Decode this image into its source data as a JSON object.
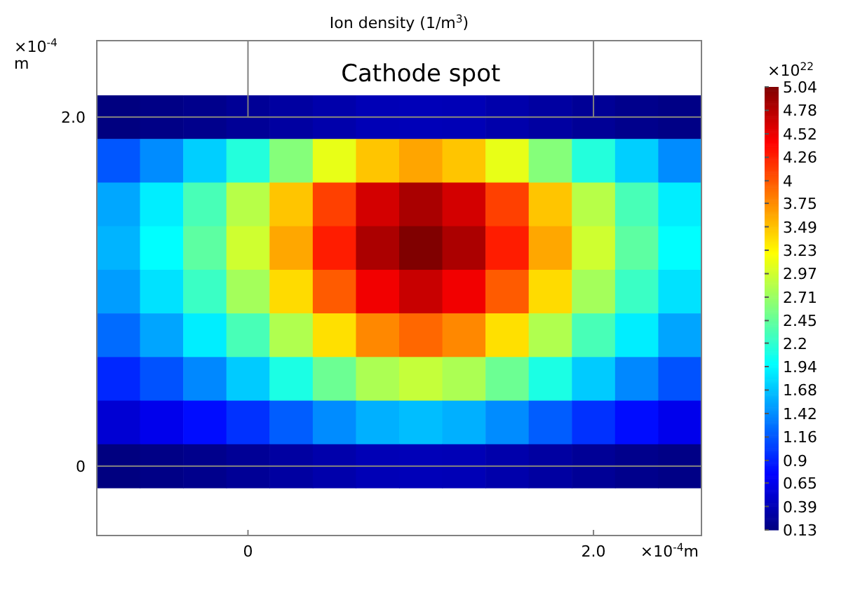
{
  "chart_data": {
    "type": "heatmap",
    "title": "Ion density (1/m$^{3}$)",
    "xlabel": "×10$^{-4}$m",
    "ylabel": "×10$^{-4}$ m",
    "clabel": "×10$^{22}$",
    "categories": [
      null,
      null,
      null,
      "0",
      null,
      null,
      null,
      null,
      null,
      null,
      null,
      "2.0",
      null,
      null
    ],
    "y_categories": [
      "2.0",
      null,
      null,
      null,
      null,
      null,
      null,
      null,
      "0"
    ],
    "cells": [
      [
        0.13,
        0.16,
        0.19,
        0.24,
        0.29,
        0.34,
        0.39,
        0.4,
        0.39,
        0.34,
        0.29,
        0.24,
        0.19,
        0.16
      ],
      [
        1.16,
        1.42,
        1.74,
        2.14,
        2.61,
        3.09,
        3.48,
        3.63,
        3.48,
        3.09,
        2.61,
        2.14,
        1.74,
        1.42
      ],
      [
        1.55,
        1.89,
        2.32,
        2.85,
        3.48,
        4.12,
        4.64,
        4.84,
        4.64,
        4.12,
        3.48,
        2.85,
        2.32,
        1.89
      ],
      [
        1.61,
        1.97,
        2.42,
        2.97,
        3.62,
        4.29,
        4.83,
        5.04,
        4.83,
        4.29,
        3.62,
        2.97,
        2.42,
        1.97
      ],
      [
        1.5,
        1.83,
        2.25,
        2.76,
        3.37,
        3.99,
        4.49,
        4.69,
        4.49,
        3.99,
        3.37,
        2.76,
        2.25,
        1.83
      ],
      [
        1.26,
        1.54,
        1.89,
        2.32,
        2.82,
        3.35,
        3.77,
        3.93,
        3.77,
        3.35,
        2.82,
        2.32,
        1.89,
        1.54
      ],
      [
        0.93,
        1.14,
        1.4,
        1.72,
        2.1,
        2.49,
        2.8,
        2.92,
        2.8,
        2.49,
        2.1,
        1.72,
        1.4,
        1.14
      ],
      [
        0.53,
        0.65,
        0.8,
        0.98,
        1.19,
        1.42,
        1.59,
        1.66,
        1.59,
        1.42,
        1.19,
        0.98,
        0.8,
        0.65
      ],
      [
        0.13,
        0.16,
        0.19,
        0.24,
        0.29,
        0.34,
        0.39,
        0.4,
        0.39,
        0.34,
        0.29,
        0.24,
        0.19,
        0.16
      ]
    ],
    "clim": [
      0.13,
      5.04
    ],
    "cticks": [
      0.13,
      0.39,
      0.65,
      0.9,
      1.16,
      1.42,
      1.68,
      1.94,
      2.2,
      2.45,
      2.71,
      2.97,
      3.23,
      3.49,
      3.75,
      4,
      4.26,
      4.52,
      4.78,
      5.04
    ],
    "annotations": [
      "Cathode spot"
    ]
  }
}
